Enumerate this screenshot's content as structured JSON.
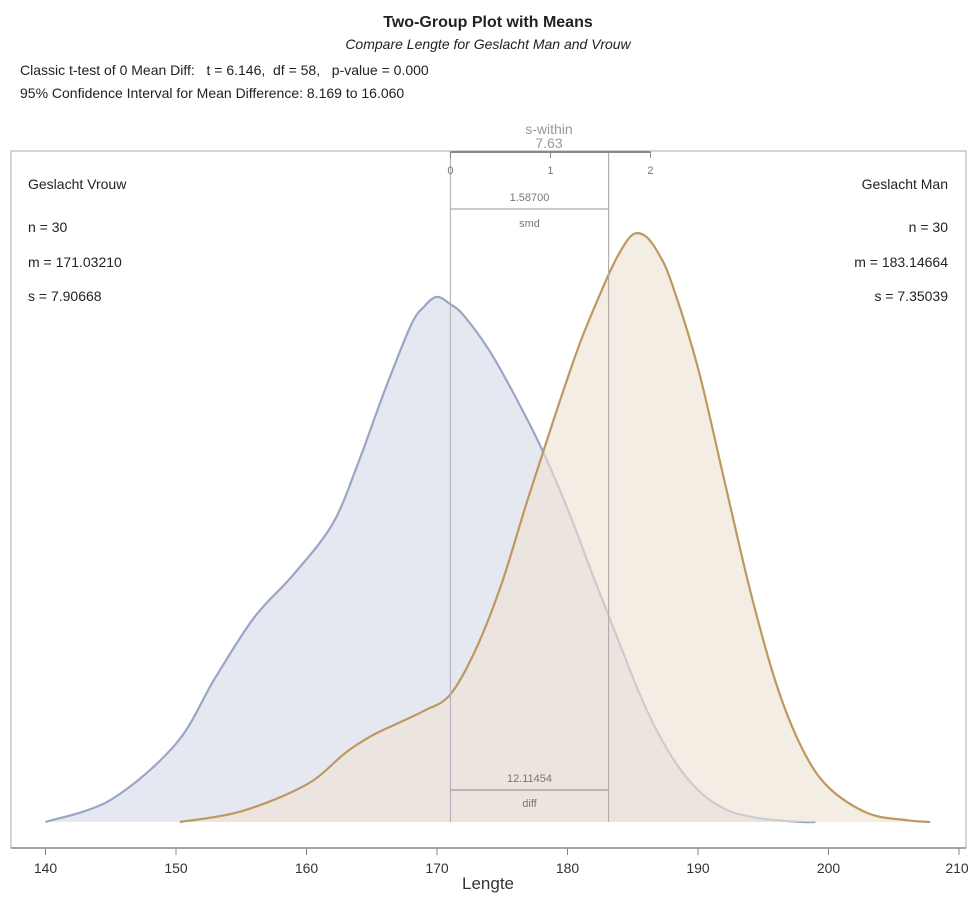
{
  "chart_data": {
    "type": "area",
    "title": "Two-Group Plot with Means",
    "subtitle": "Compare Lengte for Geslacht Man and Vrouw",
    "stats_line1": "Classic t-test of 0 Mean Diff:   t = 6.146,  df = 58,   p-value = 0.000",
    "stats_line2": "95% Confidence Interval for Mean Difference:  8.169 to 16.060",
    "xlabel": "Lengte",
    "xlim": [
      140,
      210
    ],
    "x_ticks": [
      "140",
      "150",
      "160",
      "170",
      "180",
      "190",
      "200",
      "210"
    ],
    "s_within": {
      "label": "s-within",
      "value": "7.63",
      "ticks": [
        "0",
        "1",
        "2"
      ]
    },
    "smd": {
      "value": "1.58700",
      "label": "smd"
    },
    "diff": {
      "value": "12.11454",
      "label": "diff"
    },
    "groups": [
      {
        "name": "Geslacht Vrouw",
        "n": "n = 30",
        "m": "m = 171.03210",
        "s": "s = 7.90668",
        "mean": 171.0321,
        "fill": "#e6e8f1",
        "stroke": "#9aa6c4",
        "density": {
          "x": [
            140,
            145,
            150,
            153,
            156,
            159,
            162,
            164,
            166,
            168,
            169,
            170,
            171,
            172,
            174,
            176,
            178,
            180,
            182,
            184,
            186,
            188,
            190,
            192,
            194,
            196,
            198,
            199
          ],
          "y": [
            0.0,
            0.0025,
            0.0088,
            0.0162,
            0.023,
            0.0278,
            0.0335,
            0.0405,
            0.0485,
            0.0558,
            0.0579,
            0.059,
            0.0582,
            0.057,
            0.053,
            0.0478,
            0.042,
            0.0352,
            0.0275,
            0.02,
            0.0128,
            0.0073,
            0.0036,
            0.0015,
            0.0006,
            0.0002,
            0.0,
            0.0
          ]
        }
      },
      {
        "name": "Geslacht Man",
        "n": "n = 30",
        "m": "m = 183.14664",
        "s": "s = 7.35039",
        "mean": 183.14664,
        "fill": "#ede2d3",
        "stroke": "#bd9860",
        "density": {
          "x": [
            150.3,
            155,
            160,
            163,
            165,
            167,
            169,
            171,
            173,
            175,
            177,
            179,
            181,
            183,
            184,
            185,
            186,
            187,
            188,
            190,
            192,
            194,
            196,
            198,
            200,
            203,
            206,
            207.8
          ],
          "y": [
            0.0,
            0.0012,
            0.0042,
            0.0078,
            0.0097,
            0.0111,
            0.0125,
            0.0143,
            0.0195,
            0.027,
            0.0365,
            0.0455,
            0.054,
            0.061,
            0.064,
            0.066,
            0.0658,
            0.0638,
            0.0605,
            0.051,
            0.0385,
            0.026,
            0.0155,
            0.0082,
            0.0039,
            0.001,
            0.0002,
            0.0
          ]
        }
      }
    ]
  }
}
